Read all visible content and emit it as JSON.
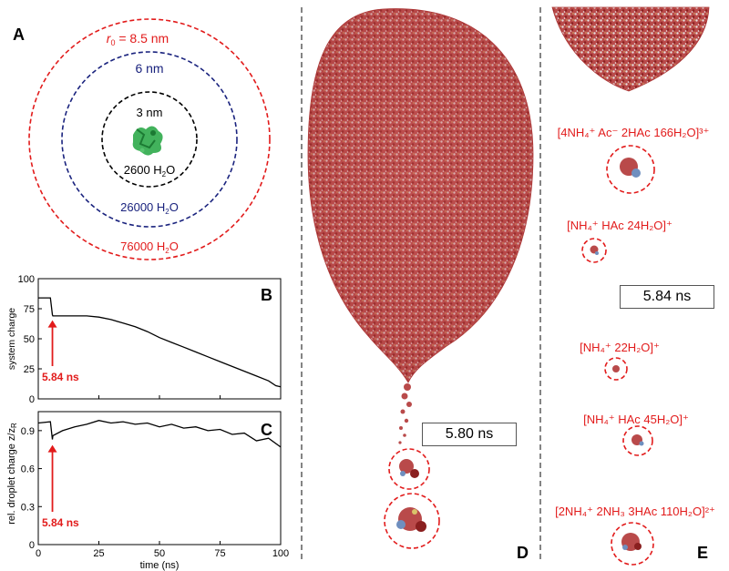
{
  "panel_a": {
    "letter": "A",
    "r0_label": "r",
    "r0_sub": "0",
    "r0_value": " = 8.5 nm",
    "mid_radius": "6 nm",
    "inner_radius": "3 nm",
    "inner_water_num": "2600 H",
    "mid_water_num": "26000 H",
    "outer_water_num": "76000 H",
    "water_sub": "2",
    "water_o": "O"
  },
  "panel_b": {
    "letter": "B",
    "ylabel": "system charge",
    "annotation": "5.84 ns",
    "yticks": [
      "0",
      "25",
      "50",
      "75",
      "100"
    ]
  },
  "panel_c": {
    "letter": "C",
    "ylabel": "rel. droplet charge z/z",
    "ylabel_sub": "R",
    "annotation": "5.84 ns",
    "yticks": [
      "0",
      "0.3",
      "0.6",
      "0.9"
    ],
    "xticks": [
      "0",
      "25",
      "50",
      "75",
      "100"
    ],
    "xlabel": "time (ns)"
  },
  "panel_d": {
    "letter": "D",
    "time_label": "5.80 ns"
  },
  "panel_e": {
    "letter": "E",
    "time_label": "5.84 ns",
    "cluster1": "[4NH₄⁺  Ac⁻  2HAc  166H₂O]³⁺",
    "cluster2": "[NH₄⁺  HAc  24H₂O]⁺",
    "cluster3": "[NH₄⁺  22H₂O]⁺",
    "cluster4": "[NH₄⁺  HAc  45H₂O]⁺",
    "cluster5": "[2NH₄⁺  2NH₃  3HAc  110H₂O]²⁺"
  },
  "colors": {
    "red": "#e21b1b",
    "navy": "#1a237e",
    "black": "#000000",
    "protein": "#2eaa4a"
  },
  "chart_data": [
    {
      "type": "line",
      "title": "",
      "xlabel": "",
      "ylabel": "system charge",
      "xlim": [
        0,
        100
      ],
      "ylim": [
        0,
        100
      ],
      "series": [
        {
          "x": [
            0,
            5,
            5.84,
            6,
            10,
            15,
            20,
            25,
            30,
            35,
            40,
            45,
            50,
            55,
            60,
            65,
            70,
            75,
            80,
            85,
            90,
            95,
            98,
            100
          ],
          "values": [
            84,
            84,
            70,
            69,
            69,
            69,
            69,
            68,
            66,
            63,
            60,
            56,
            51,
            47,
            43,
            39,
            35,
            31,
            27,
            23,
            19,
            15,
            11,
            10
          ]
        }
      ],
      "annotation": {
        "x": 5.84,
        "label": "5.84 ns"
      }
    },
    {
      "type": "line",
      "title": "",
      "xlabel": "time (ns)",
      "ylabel": "rel. droplet charge z/zR",
      "xlim": [
        0,
        100
      ],
      "ylim": [
        0,
        1.05
      ],
      "series": [
        {
          "x": [
            0,
            5,
            5.84,
            6,
            10,
            15,
            20,
            25,
            30,
            35,
            40,
            45,
            50,
            55,
            60,
            65,
            70,
            75,
            80,
            85,
            90,
            95,
            100
          ],
          "values": [
            0.96,
            0.97,
            0.83,
            0.86,
            0.9,
            0.93,
            0.95,
            0.98,
            0.96,
            0.97,
            0.95,
            0.96,
            0.93,
            0.95,
            0.92,
            0.93,
            0.9,
            0.91,
            0.87,
            0.88,
            0.82,
            0.84,
            0.77
          ]
        }
      ],
      "annotation": {
        "x": 5.84,
        "label": "5.84 ns"
      }
    }
  ]
}
